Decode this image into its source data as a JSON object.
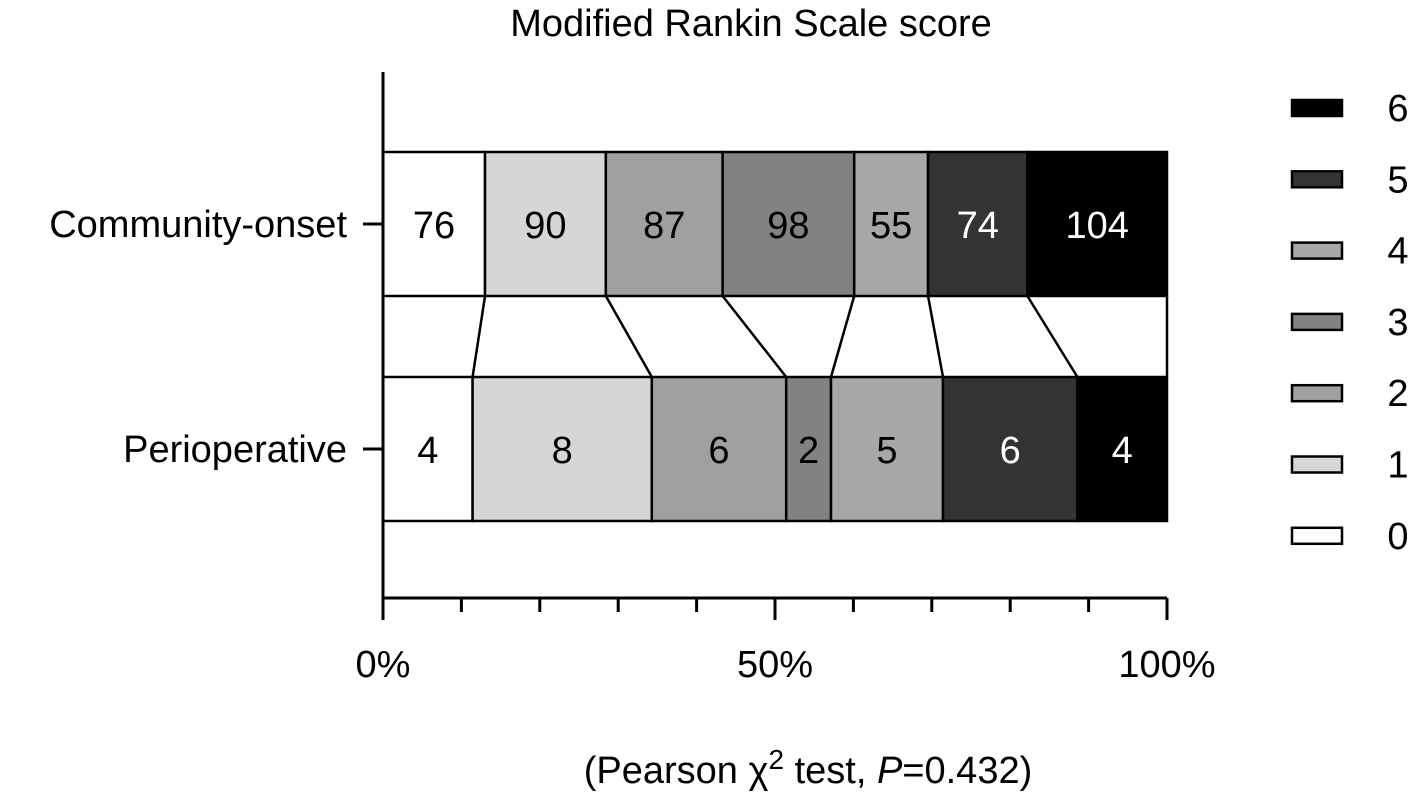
{
  "chart_data": {
    "type": "bar",
    "orientation": "horizontal",
    "stacked": "percent",
    "title": "Modified Rankin Scale score",
    "categories": [
      "Community-onset",
      "Perioperative"
    ],
    "series": [
      {
        "name": "0",
        "values": [
          76,
          4
        ],
        "color": "#ffffff"
      },
      {
        "name": "1",
        "values": [
          90,
          8
        ],
        "color": "#d6d6d6"
      },
      {
        "name": "2",
        "values": [
          87,
          6
        ],
        "color": "#a0a0a0"
      },
      {
        "name": "3",
        "values": [
          98,
          2
        ],
        "color": "#828282"
      },
      {
        "name": "4",
        "values": [
          55,
          5
        ],
        "color": "#a7a7a7"
      },
      {
        "name": "5",
        "values": [
          74,
          6
        ],
        "color": "#333333"
      },
      {
        "name": "6",
        "values": [
          104,
          4
        ],
        "color": "#000000"
      }
    ],
    "xlim": [
      0,
      100
    ],
    "x_ticks": [
      {
        "value": 0,
        "label": "0%"
      },
      {
        "value": 50,
        "label": "50%"
      },
      {
        "value": 100,
        "label": "100%"
      }
    ],
    "x_minor_step": 10,
    "grid": false,
    "legend_position": "right",
    "legend_order": [
      "6",
      "5",
      "4",
      "3",
      "2",
      "1",
      "0"
    ],
    "connect_segments": true,
    "footnote": {
      "prefix": "(Pearson ",
      "chi": "χ",
      "sup": "2",
      "middle": " test, ",
      "p": "P",
      "suffix": "=0.432)"
    }
  }
}
